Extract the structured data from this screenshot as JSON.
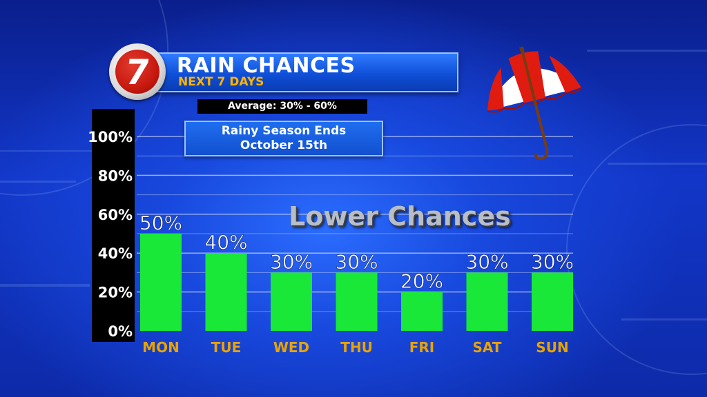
{
  "header": {
    "logo_text": "7",
    "title": "RAIN CHANCES",
    "subtitle": "NEXT 7 DAYS"
  },
  "average_note": "Average: 30% - 60%",
  "season_note": {
    "line1": "Rainy Season Ends",
    "line2": "October 15th"
  },
  "annotation": "Lower Chances",
  "icons": {
    "umbrella": "umbrella-icon"
  },
  "colors": {
    "bar": "#19e838",
    "day_label": "#e8a300",
    "background": "#1440cc"
  },
  "chart_data": {
    "type": "bar",
    "title": "RAIN CHANCES",
    "subtitle": "NEXT 7 DAYS",
    "categories": [
      "MON",
      "TUE",
      "WED",
      "THU",
      "FRI",
      "SAT",
      "SUN"
    ],
    "values": [
      50,
      40,
      30,
      30,
      20,
      30,
      30
    ],
    "data_labels": [
      "50%",
      "40%",
      "30%",
      "30%",
      "20%",
      "30%",
      "30%"
    ],
    "y_ticks": [
      "0%",
      "20%",
      "40%",
      "60%",
      "80%",
      "100%"
    ],
    "ylim": [
      0,
      100
    ],
    "grid": true,
    "legend": "none"
  }
}
